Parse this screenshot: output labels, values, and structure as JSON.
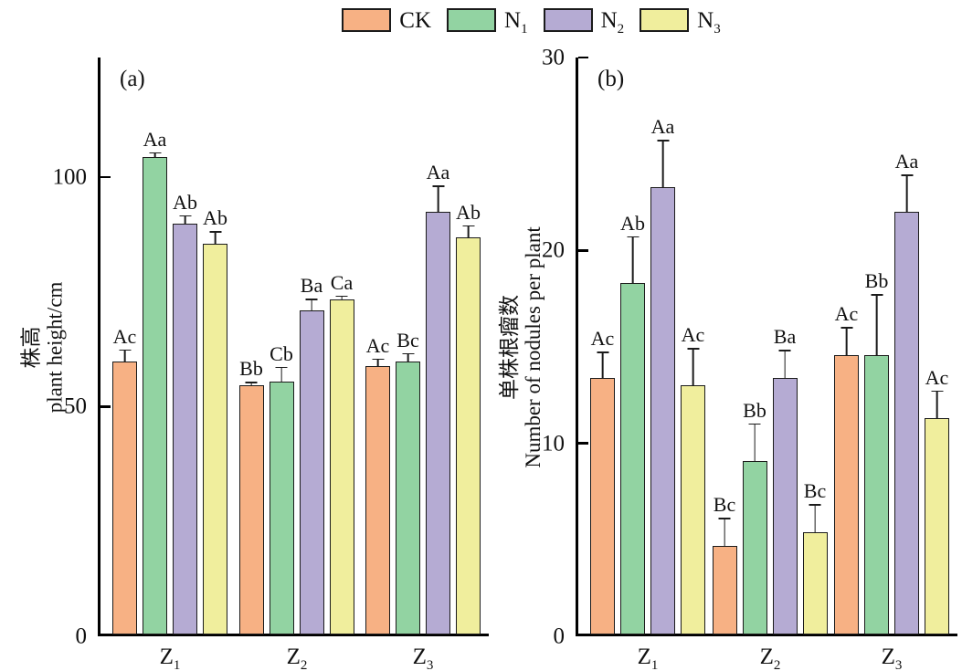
{
  "legend": {
    "items": [
      {
        "name": "CK",
        "base": "CK",
        "sub": "",
        "color": "#F7B184"
      },
      {
        "name": "N1",
        "base": "N",
        "sub": "1",
        "color": "#92D3A2"
      },
      {
        "name": "N2",
        "base": "N",
        "sub": "2",
        "color": "#B5ABD3"
      },
      {
        "name": "N3",
        "base": "N",
        "sub": "3",
        "color": "#F0EE9D"
      }
    ]
  },
  "chart_data": [
    {
      "type": "bar",
      "panel_label": "(a)",
      "ylabel_zh": "株高",
      "ylabel_en": "plant height/cm",
      "yticks": [
        0,
        50,
        100
      ],
      "ylim": [
        0,
        126
      ],
      "grid": false,
      "legend_position": "top-center",
      "categories": [
        {
          "base": "Z",
          "sub": "1"
        },
        {
          "base": "Z",
          "sub": "2"
        },
        {
          "base": "Z",
          "sub": "3"
        }
      ],
      "series": [
        {
          "name": "CK",
          "color": "#F7B184",
          "values": [
            59.5,
            54.2,
            58.5
          ],
          "errors": [
            2.8,
            1.0,
            1.8
          ],
          "sig_labels": [
            "Ac",
            "Bb",
            "Ac"
          ]
        },
        {
          "name": "N1",
          "color": "#92D3A2",
          "values": [
            104.0,
            55.0,
            59.5
          ],
          "errors": [
            1.2,
            3.5,
            2.0
          ],
          "sig_labels": [
            "Aa",
            "Cb",
            "Bc"
          ]
        },
        {
          "name": "N2",
          "color": "#B5ABD3",
          "values": [
            89.5,
            70.5,
            92.0
          ],
          "errors": [
            2.0,
            2.8,
            6.0
          ],
          "sig_labels": [
            "Ab",
            "Ba",
            "Aa"
          ]
        },
        {
          "name": "N3",
          "color": "#F0EE9D",
          "values": [
            85.0,
            73.0,
            86.5
          ],
          "errors": [
            3.0,
            1.0,
            2.8
          ],
          "sig_labels": [
            "Ab",
            "Ca",
            "Ab"
          ]
        }
      ]
    },
    {
      "type": "bar",
      "panel_label": "(b)",
      "ylabel_zh": "单株根瘤数",
      "ylabel_en": "Number of nodules per plant",
      "yticks": [
        0,
        10,
        20,
        30
      ],
      "ylim": [
        0,
        30
      ],
      "grid": false,
      "legend_position": "top-center",
      "categories": [
        {
          "base": "Z",
          "sub": "1"
        },
        {
          "base": "Z",
          "sub": "2"
        },
        {
          "base": "Z",
          "sub": "3"
        }
      ],
      "series": [
        {
          "name": "CK",
          "color": "#F7B184",
          "values": [
            13.3,
            4.6,
            14.5
          ],
          "errors": [
            1.4,
            1.5,
            1.5
          ],
          "sig_labels": [
            "Ac",
            "Bc",
            "Ac"
          ]
        },
        {
          "name": "N1",
          "color": "#92D3A2",
          "values": [
            18.2,
            9.0,
            14.5
          ],
          "errors": [
            2.5,
            2.0,
            3.2
          ],
          "sig_labels": [
            "Ab",
            "Bb",
            "Bb"
          ]
        },
        {
          "name": "N2",
          "color": "#B5ABD3",
          "values": [
            23.2,
            13.3,
            21.9
          ],
          "errors": [
            2.5,
            1.5,
            2.0
          ],
          "sig_labels": [
            "Aa",
            "Ba",
            "Aa"
          ]
        },
        {
          "name": "N3",
          "color": "#F0EE9D",
          "values": [
            12.9,
            5.3,
            11.2
          ],
          "errors": [
            2.0,
            1.5,
            1.5
          ],
          "sig_labels": [
            "Ac",
            "Bc",
            "Ac"
          ]
        }
      ]
    }
  ],
  "colors": {
    "background": "#ffffff",
    "axis": "#000000",
    "bar_border": "#1b1b1b",
    "text": "#111111"
  }
}
